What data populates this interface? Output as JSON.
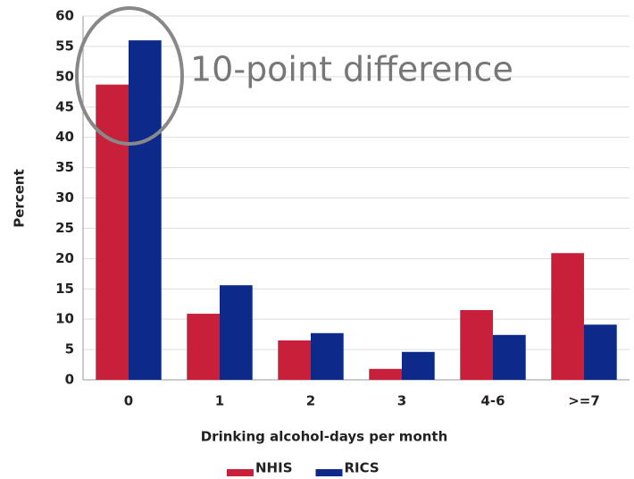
{
  "chart_data": {
    "type": "bar",
    "categories": [
      "0",
      "1",
      "2",
      "3",
      "4-6",
      ">=7"
    ],
    "series": [
      {
        "name": "NHIS",
        "color": "#c8203a",
        "values": [
          48.7,
          10.9,
          6.5,
          1.8,
          11.5,
          20.9
        ]
      },
      {
        "name": "RICS",
        "color": "#0d2a8a",
        "values": [
          56,
          15.6,
          7.7,
          4.6,
          7.4,
          9.1
        ]
      }
    ],
    "xlabel": "Drinking alcohol-days per month",
    "ylabel": "Percent",
    "annotation": "10-point difference",
    "ylim": [
      0,
      60
    ],
    "yticks": [
      0,
      5,
      10,
      15,
      20,
      25,
      30,
      35,
      40,
      45,
      50,
      55,
      60
    ],
    "grid": true,
    "legend": "bottom"
  }
}
